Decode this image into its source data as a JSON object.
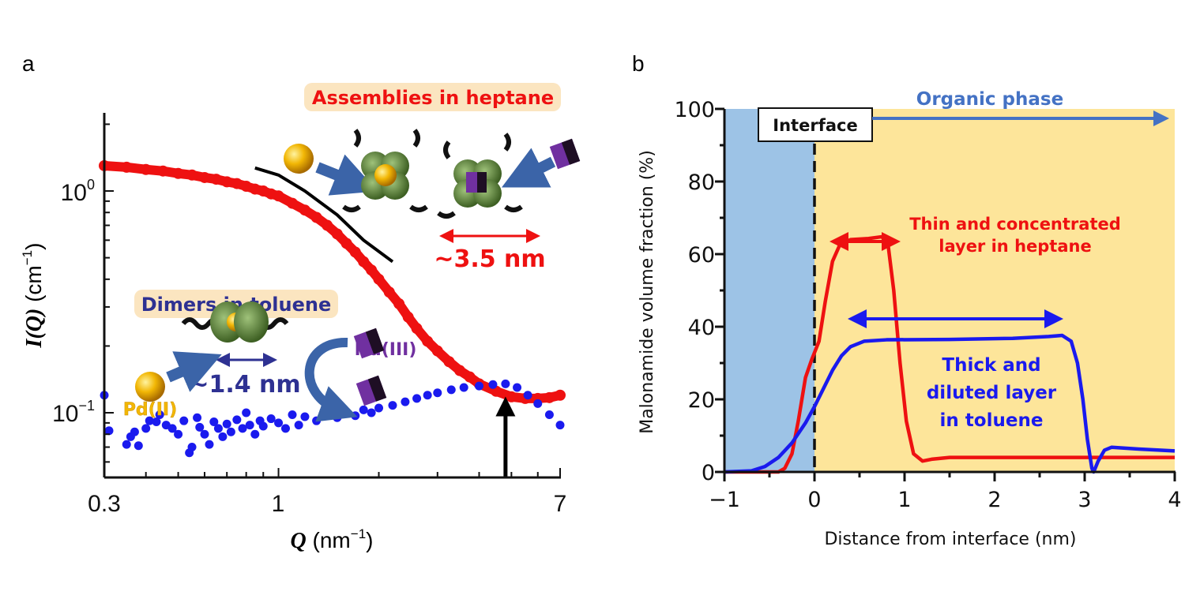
{
  "panels": {
    "a": "a",
    "b": "b"
  },
  "colors": {
    "heptane": "#ee1111",
    "toluene": "#1a1aee",
    "dimer_text": "#2e3192",
    "pd": "#f2b705",
    "nd": "#7030a0",
    "aqueous_bg": "#9dc3e6",
    "organic_bg": "#fde59a",
    "organic_arrow": "#4472c4",
    "label_bg": "#fbe5c0"
  },
  "icons": [
    "gold-sphere-pd-icon",
    "purple-cube-nd-icon",
    "green-ligand-cluster-icon",
    "blue-arrow-icon",
    "double-arrow-icon"
  ],
  "chart_data": [
    {
      "type": "scatter",
      "panel": "a",
      "xscale": "log",
      "yscale": "log",
      "xlim": [
        0.3,
        7
      ],
      "ylim": [
        0.051,
        2.25
      ],
      "xlabel_main": "Q",
      "xlabel_unit": "(nm",
      "xlabel_sup": "−1",
      "xlabel_close": ")",
      "ylabel_main": "I(Q)",
      "ylabel_unit": "(cm",
      "ylabel_sup": "−1",
      "ylabel_close": ")",
      "xticks": [
        "0.3",
        "1",
        "7"
      ],
      "yticks": [
        {
          "base": "10",
          "exp": "0"
        },
        {
          "base": "10",
          "exp": "−1"
        }
      ],
      "series": [
        {
          "color": "#ee1111",
          "points": [
            [
              0.3,
              1.3
            ],
            [
              0.35,
              1.28
            ],
            [
              0.4,
              1.25
            ],
            [
              0.45,
              1.23
            ],
            [
              0.5,
              1.2
            ],
            [
              0.55,
              1.18
            ],
            [
              0.6,
              1.15
            ],
            [
              0.65,
              1.13
            ],
            [
              0.7,
              1.1
            ],
            [
              0.75,
              1.08
            ],
            [
              0.8,
              1.05
            ],
            [
              0.85,
              1.02
            ],
            [
              0.9,
              1.0
            ],
            [
              0.95,
              0.97
            ],
            [
              1.0,
              0.95
            ],
            [
              1.1,
              0.88
            ],
            [
              1.2,
              0.82
            ],
            [
              1.3,
              0.76
            ],
            [
              1.4,
              0.7
            ],
            [
              1.5,
              0.64
            ],
            [
              1.6,
              0.58
            ],
            [
              1.7,
              0.53
            ],
            [
              1.8,
              0.48
            ],
            [
              1.9,
              0.44
            ],
            [
              2.0,
              0.4
            ],
            [
              2.15,
              0.35
            ],
            [
              2.3,
              0.31
            ],
            [
              2.45,
              0.27
            ],
            [
              2.6,
              0.24
            ],
            [
              2.8,
              0.21
            ],
            [
              3.0,
              0.19
            ],
            [
              3.25,
              0.17
            ],
            [
              3.5,
              0.155
            ],
            [
              3.75,
              0.145
            ],
            [
              4.0,
              0.135
            ],
            [
              4.5,
              0.125
            ],
            [
              5.0,
              0.118
            ],
            [
              5.5,
              0.116
            ],
            [
              6.0,
              0.116
            ],
            [
              6.5,
              0.117
            ],
            [
              7.0,
              0.12
            ]
          ]
        },
        {
          "color": "#1a1aee",
          "points": [
            [
              0.3,
              0.12
            ],
            [
              0.31,
              0.083
            ],
            [
              0.35,
              0.072
            ],
            [
              0.36,
              0.078
            ],
            [
              0.37,
              0.082
            ],
            [
              0.38,
              0.071
            ],
            [
              0.4,
              0.085
            ],
            [
              0.41,
              0.092
            ],
            [
              0.43,
              0.091
            ],
            [
              0.44,
              0.098
            ],
            [
              0.46,
              0.088
            ],
            [
              0.48,
              0.085
            ],
            [
              0.5,
              0.08
            ],
            [
              0.52,
              0.092
            ],
            [
              0.54,
              0.066
            ],
            [
              0.55,
              0.07
            ],
            [
              0.57,
              0.095
            ],
            [
              0.58,
              0.086
            ],
            [
              0.6,
              0.08
            ],
            [
              0.62,
              0.072
            ],
            [
              0.64,
              0.091
            ],
            [
              0.66,
              0.085
            ],
            [
              0.68,
              0.078
            ],
            [
              0.7,
              0.089
            ],
            [
              0.72,
              0.082
            ],
            [
              0.75,
              0.093
            ],
            [
              0.78,
              0.085
            ],
            [
              0.8,
              0.1
            ],
            [
              0.82,
              0.088
            ],
            [
              0.85,
              0.08
            ],
            [
              0.88,
              0.092
            ],
            [
              0.9,
              0.087
            ],
            [
              0.95,
              0.094
            ],
            [
              1.0,
              0.09
            ],
            [
              1.05,
              0.085
            ],
            [
              1.1,
              0.098
            ],
            [
              1.15,
              0.088
            ],
            [
              1.2,
              0.096
            ],
            [
              1.3,
              0.092
            ],
            [
              1.4,
              0.098
            ],
            [
              1.5,
              0.095
            ],
            [
              1.6,
              0.1
            ],
            [
              1.7,
              0.097
            ],
            [
              1.8,
              0.103
            ],
            [
              1.9,
              0.1
            ],
            [
              2.0,
              0.105
            ],
            [
              2.2,
              0.108
            ],
            [
              2.4,
              0.112
            ],
            [
              2.6,
              0.116
            ],
            [
              2.8,
              0.12
            ],
            [
              3.0,
              0.123
            ],
            [
              3.3,
              0.127
            ],
            [
              3.6,
              0.13
            ],
            [
              4.0,
              0.132
            ],
            [
              4.4,
              0.134
            ],
            [
              4.8,
              0.135
            ],
            [
              5.2,
              0.13
            ],
            [
              5.6,
              0.12
            ],
            [
              6.0,
              0.11
            ],
            [
              6.5,
              0.098
            ],
            [
              7.0,
              0.088
            ]
          ]
        }
      ],
      "fit_line": [
        [
          0.85,
          1.27
        ],
        [
          1.0,
          1.18
        ],
        [
          1.2,
          1.0
        ],
        [
          1.5,
          0.78
        ],
        [
          1.8,
          0.6
        ],
        [
          2.2,
          0.48
        ]
      ],
      "peak_arrow_q": 4.8,
      "annotations": {
        "assemblies": "Assemblies in heptane",
        "size_heptane": "~3.5 nm",
        "dimers": "Dimers in toluene",
        "size_toluene": "~1.4 nm",
        "pd": "Pd(II)",
        "nd": "Nd(III)"
      }
    },
    {
      "type": "line",
      "panel": "b",
      "xlim": [
        -1,
        4
      ],
      "ylim": [
        0,
        100
      ],
      "xlabel": "Distance from interface (nm)",
      "ylabel": "Malonamide volume fraction (%)",
      "xticks": [
        "−1",
        "0",
        "1",
        "2",
        "3",
        "4"
      ],
      "yticks": [
        "0",
        "20",
        "40",
        "60",
        "80",
        "100"
      ],
      "regions": [
        {
          "from": -1,
          "to": 0,
          "color": "#9dc3e6"
        },
        {
          "from": 0,
          "to": 4,
          "color": "#fde59a"
        }
      ],
      "series": [
        {
          "color": "#ee1111",
          "points": [
            [
              -1,
              0
            ],
            [
              -0.4,
              0
            ],
            [
              -0.33,
              1
            ],
            [
              -0.25,
              5
            ],
            [
              -0.18,
              14
            ],
            [
              -0.1,
              26
            ],
            [
              -0.03,
              31
            ],
            [
              0.05,
              36
            ],
            [
              0.12,
              47
            ],
            [
              0.2,
              58
            ],
            [
              0.28,
              62.5
            ],
            [
              0.4,
              64
            ],
            [
              0.6,
              64.3
            ],
            [
              0.75,
              64.8
            ],
            [
              0.82,
              62
            ],
            [
              0.88,
              50
            ],
            [
              0.95,
              30
            ],
            [
              1.02,
              14
            ],
            [
              1.1,
              5
            ],
            [
              1.2,
              3
            ],
            [
              1.3,
              3.5
            ],
            [
              1.5,
              4
            ],
            [
              4,
              4
            ]
          ]
        },
        {
          "color": "#1a1aee",
          "points": [
            [
              -1,
              0
            ],
            [
              -0.7,
              0.3
            ],
            [
              -0.55,
              1.5
            ],
            [
              -0.4,
              4
            ],
            [
              -0.25,
              8
            ],
            [
              -0.1,
              13.5
            ],
            [
              0,
              18
            ],
            [
              0.1,
              23
            ],
            [
              0.2,
              28
            ],
            [
              0.3,
              32
            ],
            [
              0.4,
              34.5
            ],
            [
              0.55,
              36
            ],
            [
              0.8,
              36.4
            ],
            [
              1.5,
              36.5
            ],
            [
              2.2,
              36.8
            ],
            [
              2.6,
              37.3
            ],
            [
              2.75,
              37.6
            ],
            [
              2.85,
              36
            ],
            [
              2.92,
              30
            ],
            [
              2.98,
              20
            ],
            [
              3.03,
              9
            ],
            [
              3.08,
              1
            ],
            [
              3.1,
              0
            ],
            [
              3.15,
              3
            ],
            [
              3.22,
              6
            ],
            [
              3.3,
              6.8
            ],
            [
              3.6,
              6.3
            ],
            [
              4,
              5.8
            ]
          ]
        }
      ],
      "annotations": {
        "interface": "Interface",
        "organic": "Organic phase",
        "thin_line1": "Thin and concentrated",
        "thin_line2": "layer in heptane",
        "thick_line1": "Thick and",
        "thick_line2": "diluted layer",
        "thick_line3": "in toluene"
      }
    }
  ]
}
